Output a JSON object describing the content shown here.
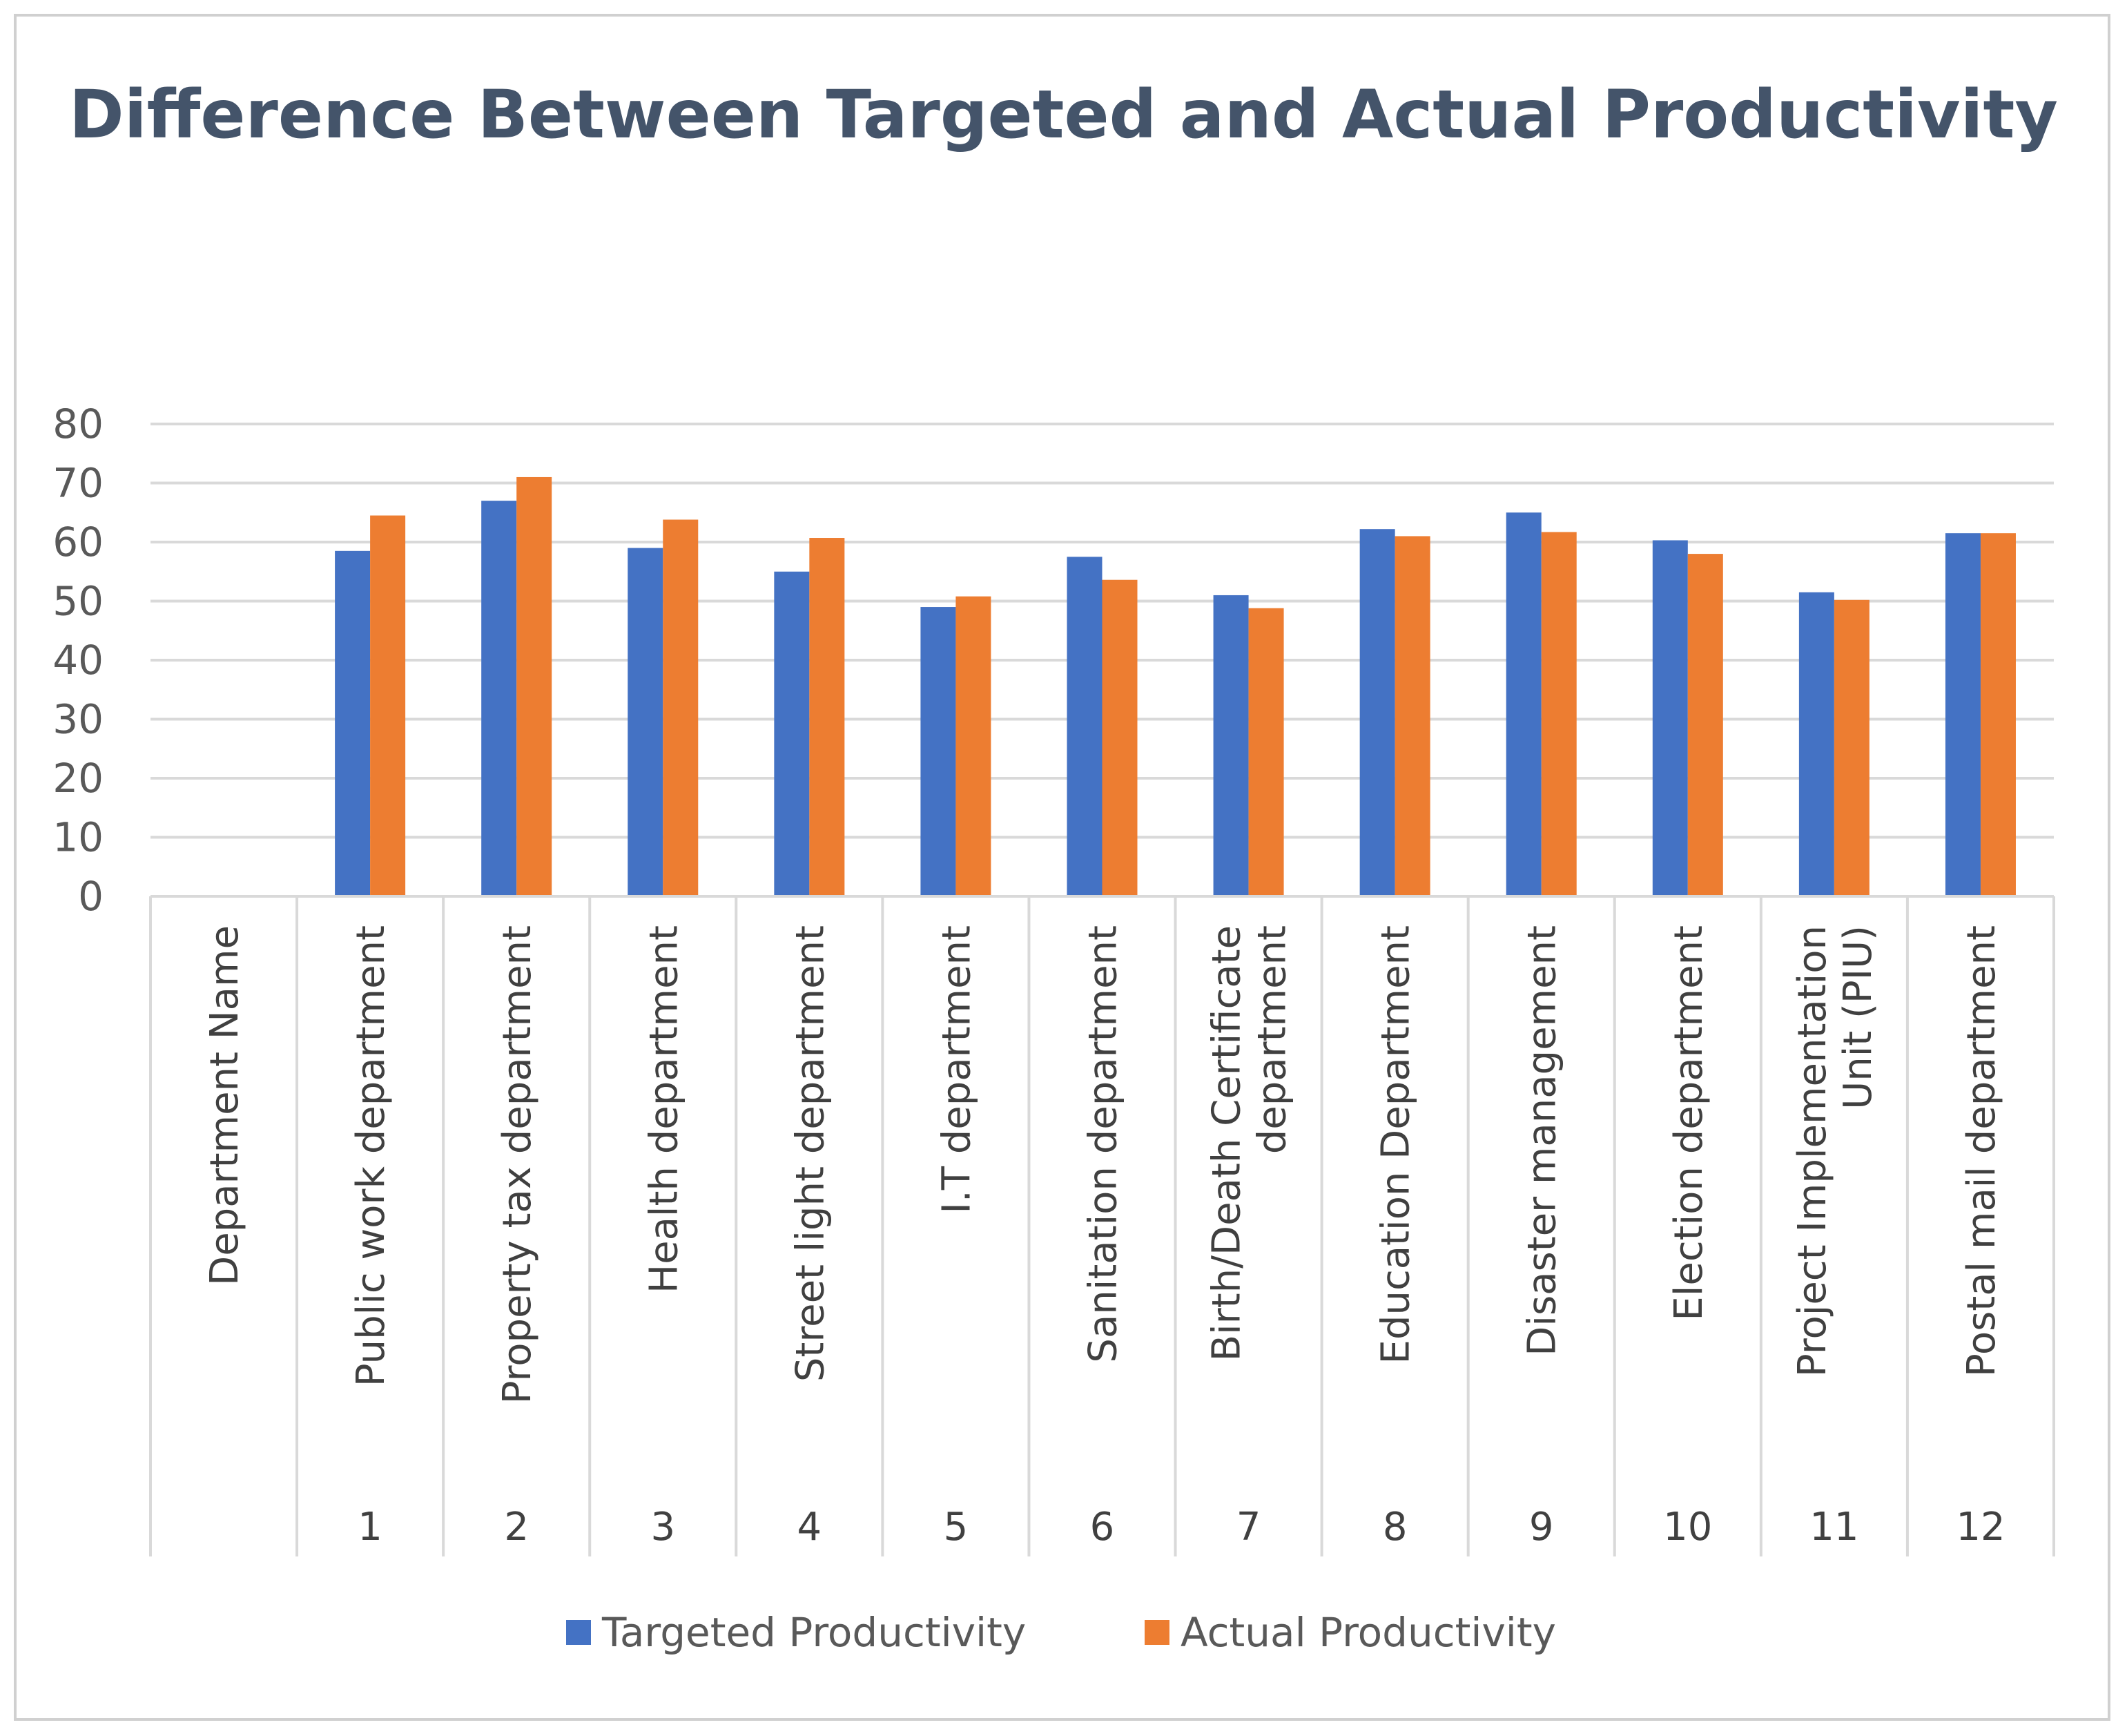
{
  "chart_data": {
    "type": "bar",
    "title": "Difference Between Targeted and Actual Productivity",
    "xlabel": "",
    "ylabel": "",
    "ylim": [
      0,
      80
    ],
    "yticks": [
      0,
      10,
      20,
      30,
      40,
      50,
      60,
      70,
      80
    ],
    "grid": true,
    "legend": "bottom",
    "categories": [
      {
        "number": "",
        "name": "Department Name"
      },
      {
        "number": "1",
        "name": "Public work department"
      },
      {
        "number": "2",
        "name": "Property tax department"
      },
      {
        "number": "3",
        "name": "Health department"
      },
      {
        "number": "4",
        "name": "Street light department"
      },
      {
        "number": "5",
        "name": "I.T department"
      },
      {
        "number": "6",
        "name": "Sanitation department"
      },
      {
        "number": "7",
        "name": "Birth/Death Certificate department"
      },
      {
        "number": "8",
        "name": "Education Department"
      },
      {
        "number": "9",
        "name": "Disaster management"
      },
      {
        "number": "10",
        "name": "Election department"
      },
      {
        "number": "11",
        "name": "Project Implementation Unit (PIU)"
      },
      {
        "number": "12",
        "name": "Postal mail department"
      }
    ],
    "series": [
      {
        "name": "Targeted Productivity",
        "color": "#4472c4",
        "values": [
          null,
          58.5,
          67,
          59,
          55,
          49,
          57.5,
          51,
          62.2,
          65,
          60.3,
          51.5,
          61.5
        ]
      },
      {
        "name": "Actual Productivity",
        "color": "#ed7d31",
        "values": [
          null,
          64.5,
          71,
          63.8,
          60.7,
          50.8,
          53.6,
          48.8,
          61,
          61.7,
          58,
          50.2,
          61.5
        ]
      }
    ]
  }
}
